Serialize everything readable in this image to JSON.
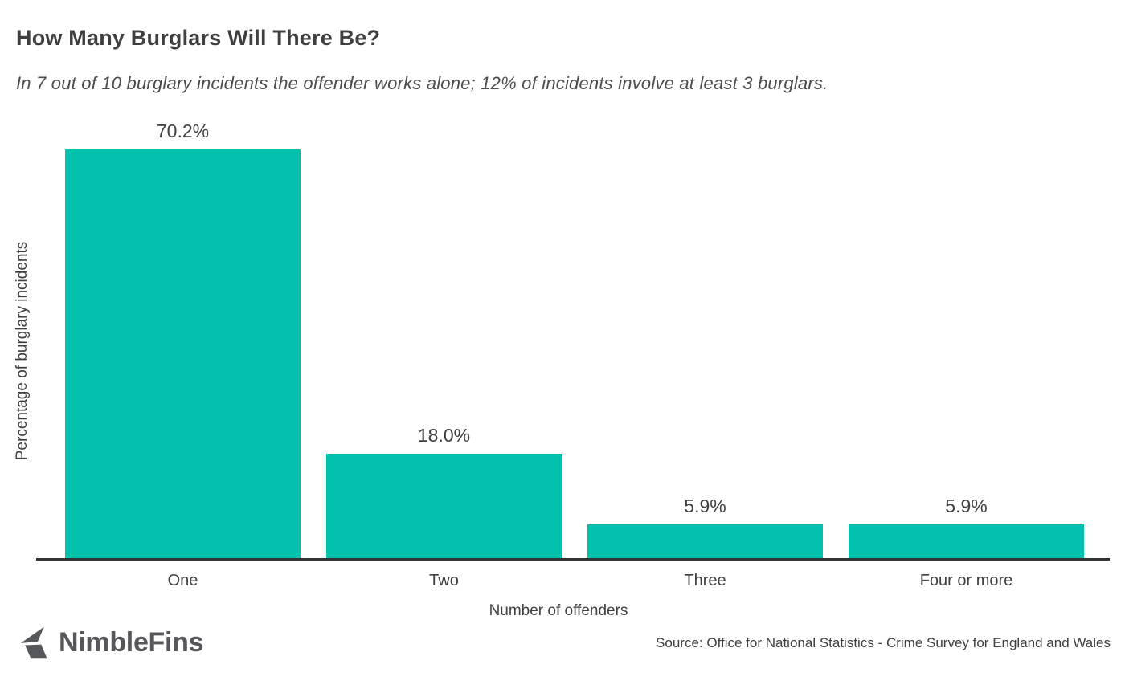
{
  "page": {
    "title": "How Many Burglars Will There Be?",
    "subtitle": "In 7 out of 10 burglary incidents the offender works alone; 12% of incidents involve at least 3 burglars."
  },
  "chart_data": {
    "type": "bar",
    "title": "How Many Burglars Will There Be?",
    "subtitle": "In 7 out of 10 burglary incidents the offender works alone; 12% of incidents involve at least 3 burglars.",
    "categories": [
      "One",
      "Two",
      "Three",
      "Four or more"
    ],
    "values": [
      70.2,
      18.0,
      5.9,
      5.9
    ],
    "value_labels": [
      "70.2%",
      "18.0%",
      "5.9%",
      "5.9%"
    ],
    "xlabel": "Number of offenders",
    "ylabel": "Percentage of burglary incidents",
    "ylim": [
      0,
      75
    ],
    "grid": false,
    "legend": false,
    "bar_color": "#00c2ad"
  },
  "footer": {
    "brand_name": "NimbleFins",
    "brand_icon": "nimblefins-fin-icon",
    "source": "Source: Office for National Statistics - Crime Survey for England and Wales"
  },
  "colors": {
    "bar": "#00c2ad",
    "axis_line": "#333333",
    "title_text": "#3f3f3f",
    "subtitle_text": "#4b4b4b",
    "label_text": "#3f3f3f",
    "brand": "#56575b"
  }
}
